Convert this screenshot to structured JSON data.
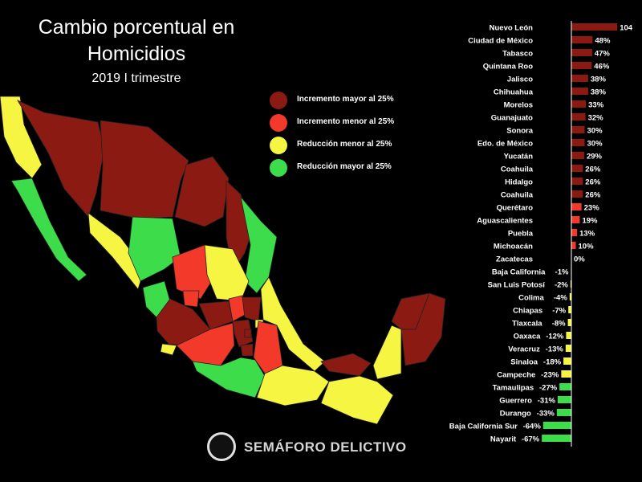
{
  "header": {
    "title_line1": "Cambio porcentual en",
    "title_line2": "Homicidios",
    "subtitle": "2019 I trimestre"
  },
  "legend": [
    {
      "label": "Incremento mayor al 25%",
      "color": "#8b1a12"
    },
    {
      "label": "Incremento menor al 25%",
      "color": "#f2392a"
    },
    {
      "label": "Reducción menor al 25%",
      "color": "#f5f542"
    },
    {
      "label": "Reducción mayor al 25%",
      "color": "#3ddc4a"
    }
  ],
  "logo": {
    "text": "SEMÁFORO DELICTIVO",
    "icon": "semaforo-logo-icon"
  },
  "colors": {
    "inc_high": "#8b1a12",
    "inc_low": "#f2392a",
    "dec_low": "#f5f542",
    "dec_high": "#3ddc4a",
    "background": "#000000"
  },
  "chart_data": {
    "type": "bar",
    "orientation": "horizontal",
    "title": "Cambio porcentual en Homicidios",
    "subtitle": "2019 I trimestre",
    "unit": "%",
    "categories": [
      "Nuevo León",
      "Ciudad de México",
      "Tabasco",
      "Quintana Roo",
      "Jalisco",
      "Chihuahua",
      "Morelos",
      "Guanajuato",
      "Sonora",
      "Edo. de México",
      "Yucatán",
      "Coahuila",
      "Hidalgo",
      "Coahuila",
      "Querétaro",
      "Aguascalientes",
      "Puebla",
      "Michoacán",
      "Zacatecas",
      "Baja California",
      "San Luis Potosí",
      "Colima",
      "Chiapas",
      "Tlaxcala",
      "Oaxaca",
      "Veracruz",
      "Sinaloa",
      "Campeche",
      "Tamaulipas",
      "Guerrero",
      "Durango",
      "Baja California Sur",
      "Nayarit"
    ],
    "values": [
      104,
      48,
      47,
      46,
      38,
      38,
      33,
      32,
      30,
      30,
      29,
      26,
      26,
      26,
      23,
      19,
      13,
      10,
      0,
      -1,
      -2,
      -4,
      -7,
      -8,
      -12,
      -13,
      -18,
      -23,
      -27,
      -31,
      -33,
      -64,
      -67
    ],
    "value_labels": [
      "104",
      "48%",
      "47%",
      "46%",
      "38%",
      "38%",
      "33%",
      "32%",
      "30%",
      "30%",
      "29%",
      "26%",
      "26%",
      "26%",
      "23%",
      "19%",
      "13%",
      "10%",
      "0%",
      "-1%",
      "-2%",
      "-4%",
      "-7%",
      "-8%",
      "-12%",
      "-13%",
      "-18%",
      "-23%",
      "-27%",
      "-31%",
      "-33%",
      "-64%",
      "-67%"
    ],
    "color_rule": {
      "inc_high": "> 25",
      "inc_low": "0 to 25",
      "dec_low": "-25 to 0",
      "dec_high": "< -25"
    },
    "legend_position": "top-center",
    "grid": false
  }
}
